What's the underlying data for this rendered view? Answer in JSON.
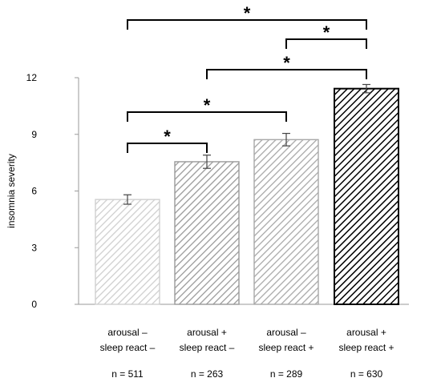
{
  "chart_data": {
    "type": "bar",
    "title": "",
    "xlabel": "",
    "ylabel": "insomnia severity",
    "ylim": [
      0,
      12
    ],
    "yticks": [
      0,
      3,
      6,
      9,
      12
    ],
    "grid": false,
    "categories": [
      {
        "line1": "arousal –",
        "line2": "sleep react –",
        "n": "n = 511"
      },
      {
        "line1": "arousal +",
        "line2": "sleep react –",
        "n": "n = 263"
      },
      {
        "line1": "arousal –",
        "line2": "sleep react +",
        "n": "n = 289"
      },
      {
        "line1": "arousal +",
        "line2": "sleep react +",
        "n": "n = 630"
      }
    ],
    "values": [
      5.55,
      7.55,
      8.72,
      11.42
    ],
    "errors": [
      0.25,
      0.35,
      0.33,
      0.22
    ],
    "bar_styles": [
      {
        "stroke": "#cfcfcf",
        "hatch": "#cfcfcf"
      },
      {
        "stroke": "#9a9a9a",
        "hatch": "#9a9a9a"
      },
      {
        "stroke": "#a8a8a8",
        "hatch": "#a8a8a8"
      },
      {
        "stroke": "#000000",
        "hatch": "#000000"
      }
    ],
    "significance": [
      {
        "from": 0,
        "to": 3,
        "label": "*"
      },
      {
        "from": 2,
        "to": 3,
        "label": "*"
      },
      {
        "from": 1,
        "to": 3,
        "label": "*"
      },
      {
        "from": 0,
        "to": 2,
        "label": "*"
      },
      {
        "from": 0,
        "to": 1,
        "label": "*"
      }
    ]
  }
}
